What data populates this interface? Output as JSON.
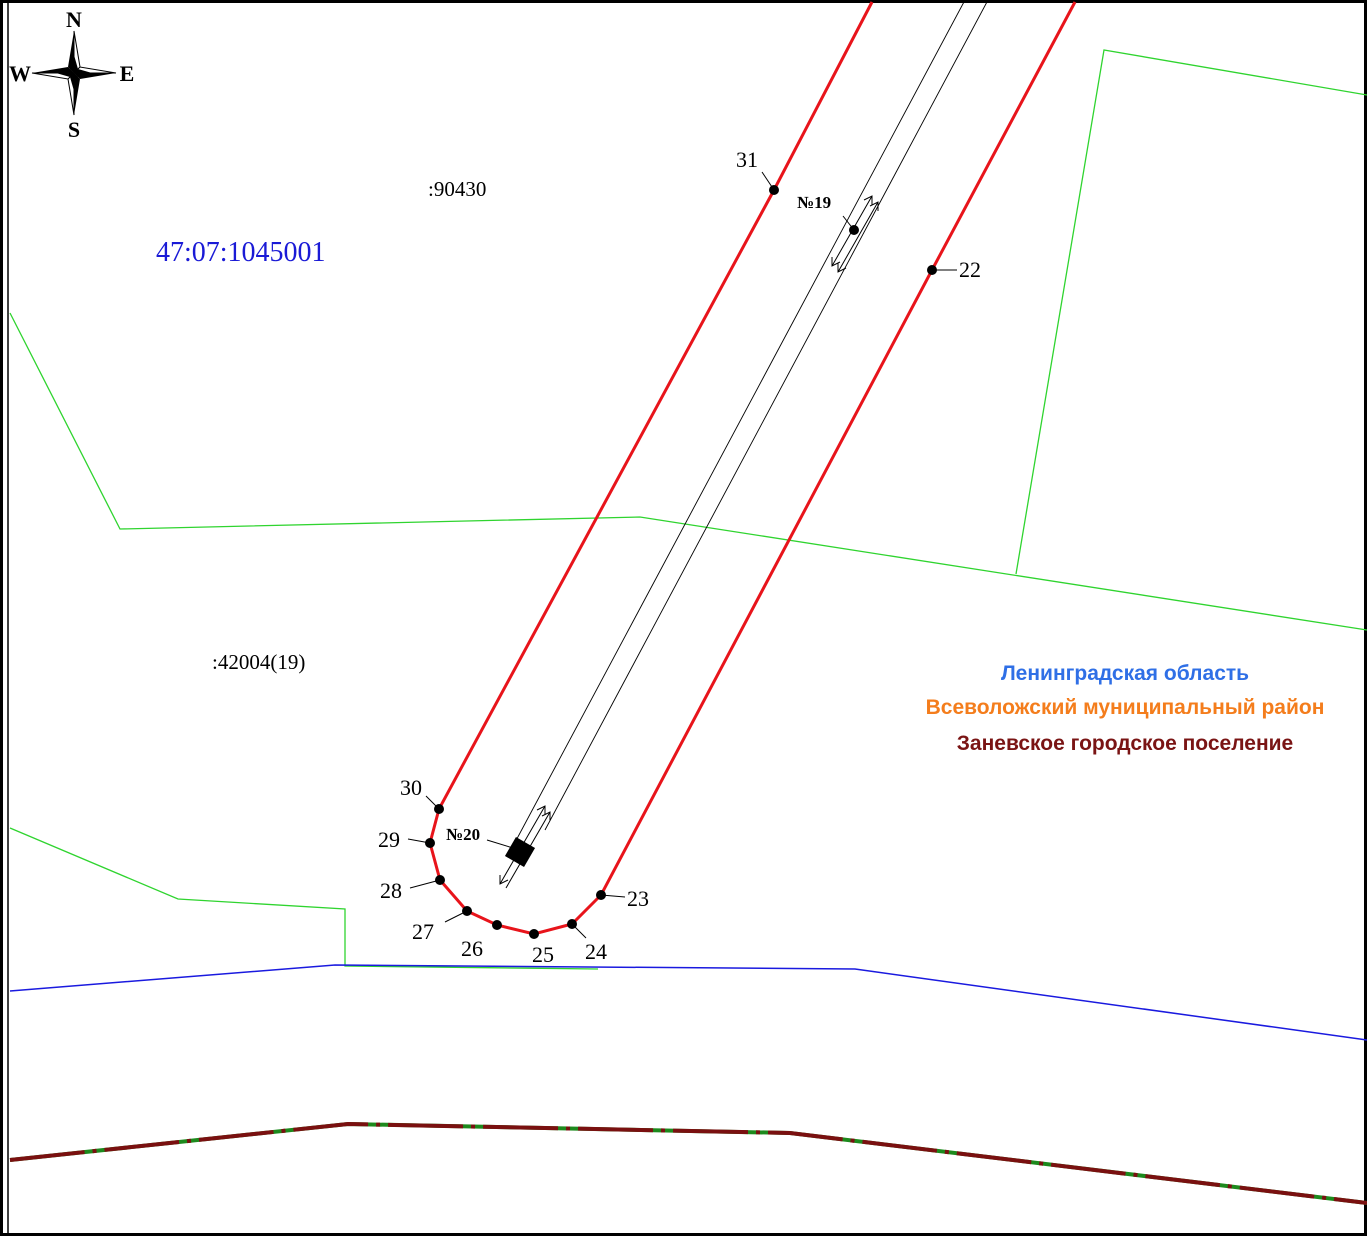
{
  "compass": {
    "north": "N",
    "south": "S",
    "east": "E",
    "west": "W"
  },
  "cadastral": {
    "quarter_number": "47:07:1045001",
    "parcel_90430": ":90430",
    "parcel_42004": ":42004(19)"
  },
  "markers": {
    "no19": "№19",
    "no20": "№20"
  },
  "points": [
    "22",
    "23",
    "24",
    "25",
    "26",
    "27",
    "28",
    "29",
    "30",
    "31"
  ],
  "legend": {
    "region": "Ленинградская область",
    "district": "Всеволожский муниципальный район",
    "settlement": "Заневское городское поселение"
  },
  "colors": {
    "boundary_red": "#e8141b",
    "parcel_green": "#2fd42f",
    "municipal_blue": "#1a1adf",
    "settlement_line": "#7a1010",
    "quarter_label": "#1a1ad6",
    "region_text": "#2f6fe6",
    "district_text": "#f47d1c",
    "settlement_text": "#7a1414"
  }
}
